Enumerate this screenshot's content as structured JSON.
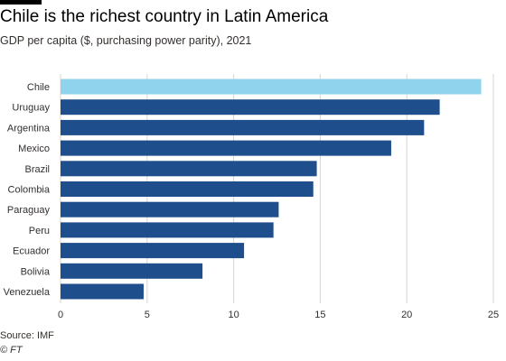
{
  "header": {
    "title": "Chile is the richest country in Latin America",
    "subtitle": "GDP per capita ($, purchasing power parity), 2021"
  },
  "footer": {
    "source": "Source: IMF",
    "credit": "© FT"
  },
  "colors": {
    "highlight": "#8fd3ec",
    "bar": "#1f4e8c",
    "grid": "#d9d4cf"
  },
  "chart_data": {
    "type": "bar",
    "orientation": "horizontal",
    "categories": [
      "Chile",
      "Uruguay",
      "Argentina",
      "Mexico",
      "Brazil",
      "Colombia",
      "Paraguay",
      "Peru",
      "Ecuador",
      "Bolivia",
      "Venezuela"
    ],
    "values": [
      24.3,
      21.9,
      21.0,
      19.1,
      14.8,
      14.6,
      12.6,
      12.3,
      10.6,
      8.2,
      4.8
    ],
    "highlight": "Chile",
    "xlim": [
      0,
      25
    ],
    "xticks": [
      "0",
      "5",
      "10",
      "15",
      "20",
      "25"
    ],
    "grid": true,
    "title": "Chile is the richest country in Latin America",
    "xlabel": "",
    "ylabel": ""
  }
}
